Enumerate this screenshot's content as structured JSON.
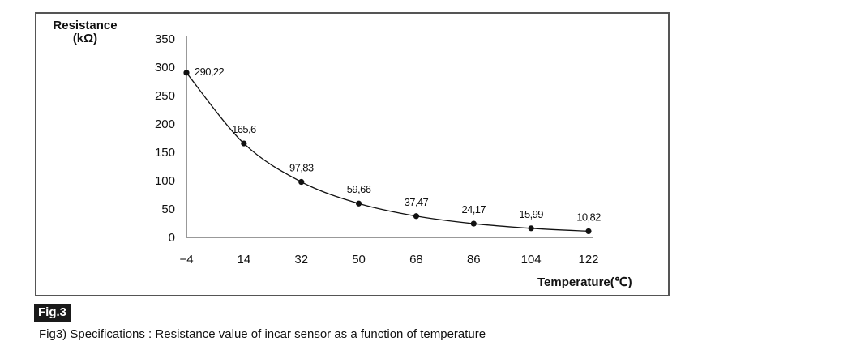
{
  "chart_data": {
    "type": "line",
    "title": "",
    "ylabel": "Resistance",
    "ylabel_unit": "(kΩ)",
    "xlabel": "Temperature(℃)",
    "ylim": [
      0,
      350
    ],
    "yticks": [
      0,
      50,
      100,
      150,
      200,
      250,
      300,
      350
    ],
    "xticks": [
      "−4",
      "14",
      "32",
      "50",
      "68",
      "86",
      "104",
      "122"
    ],
    "x": [
      -4,
      14,
      32,
      50,
      68,
      86,
      104,
      122
    ],
    "values": [
      290.22,
      165.6,
      97.83,
      59.66,
      37.47,
      24.17,
      15.99,
      10.82
    ],
    "data_labels": [
      "290,22",
      "165,6",
      "97,83",
      "59,66",
      "37,47",
      "24,17",
      "15,99",
      "10,82"
    ],
    "grid": false,
    "line_color": "#111111"
  },
  "figure": {
    "badge": "Fig.3",
    "caption": "Fig3) Specifications : Resistance value of incar sensor as a function of temperature"
  }
}
